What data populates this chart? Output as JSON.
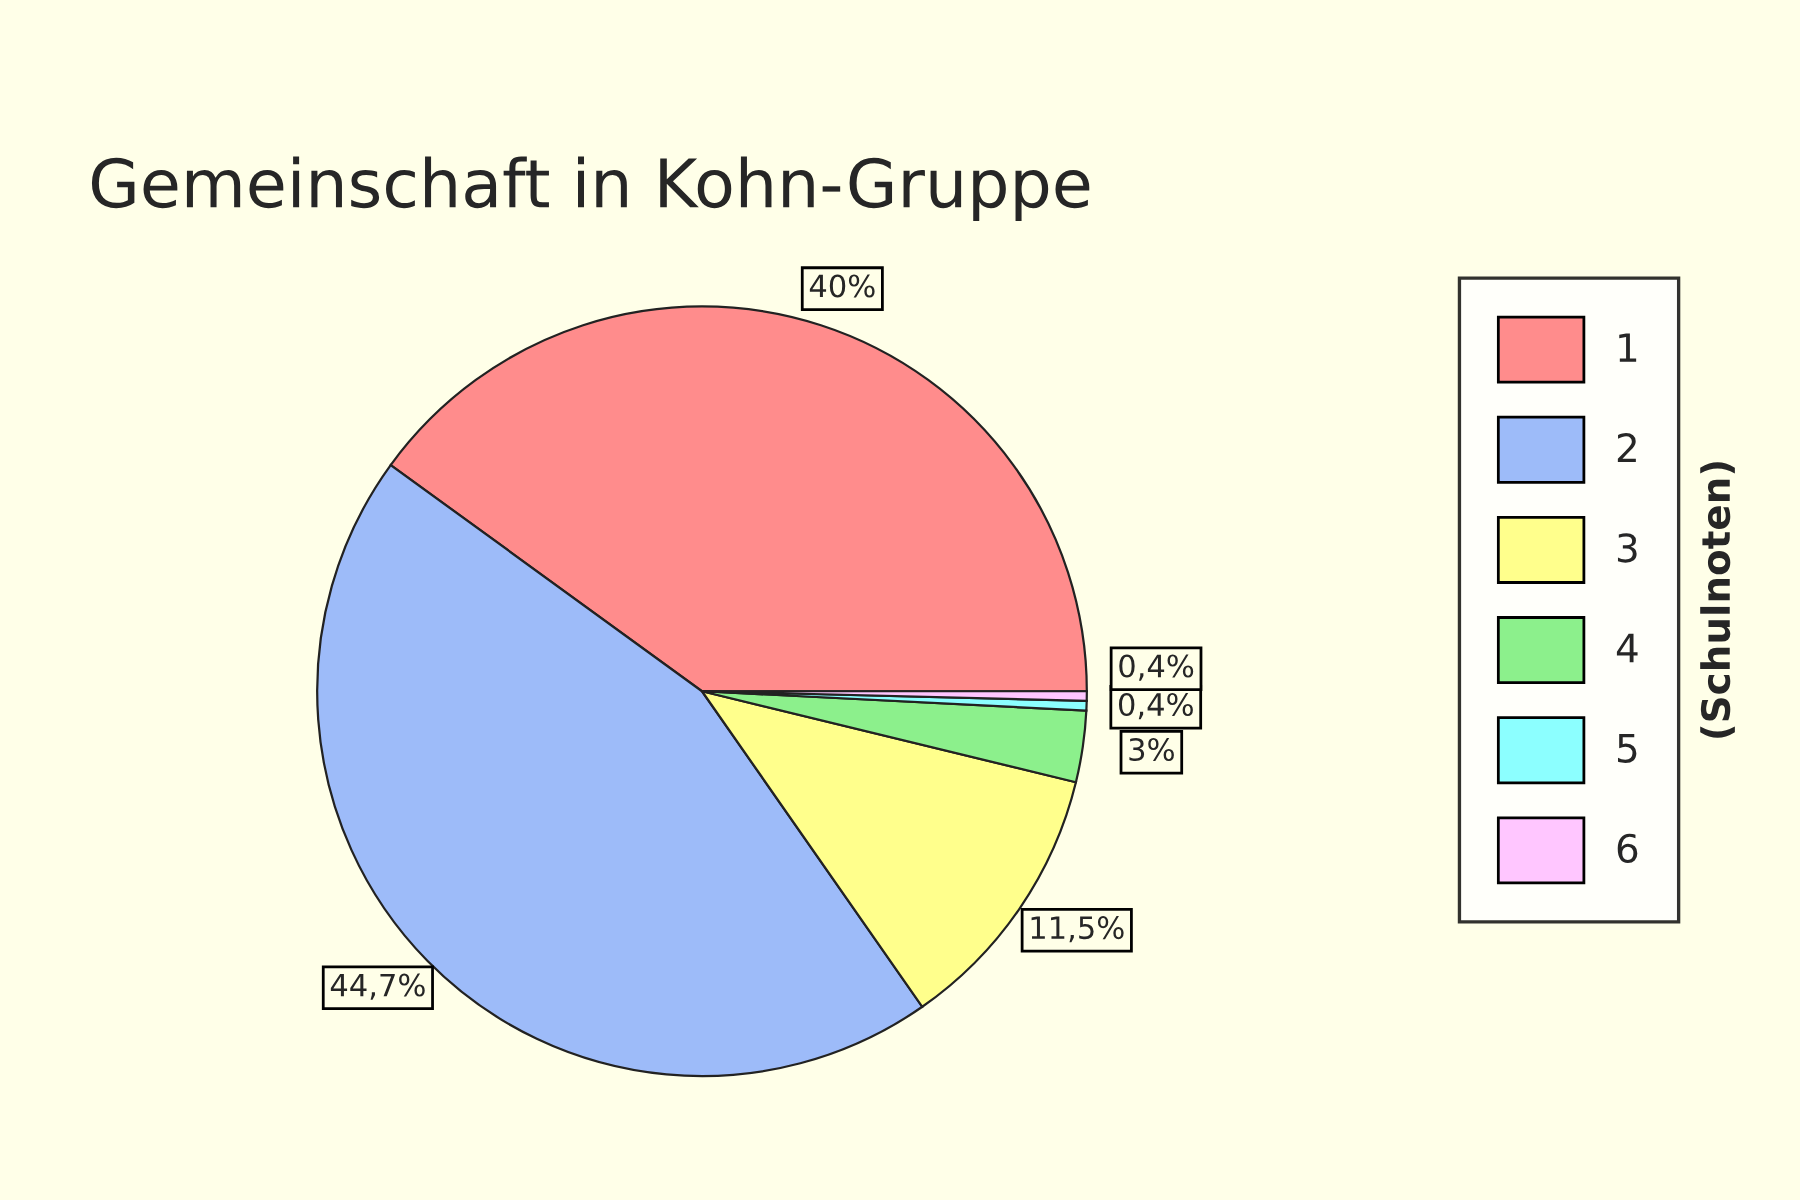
{
  "chart_data": {
    "type": "pie",
    "title": "Gemeinschaft in Kohn-Gruppe",
    "legend_title": "(Schulnoten)",
    "legend": "right",
    "categories": [
      "1",
      "2",
      "3",
      "4",
      "5",
      "6"
    ],
    "values": [
      40,
      44.7,
      11.5,
      3,
      0.4,
      0.4
    ],
    "value_labels": [
      "40%",
      "44,7%",
      "11,5%",
      "3%",
      "0,4%",
      "0,4%"
    ],
    "colors": [
      "#ff8c8c",
      "#9dbbf9",
      "#ffff8c",
      "#8cf08c",
      "#8cffff",
      "#ffc6ff"
    ]
  }
}
